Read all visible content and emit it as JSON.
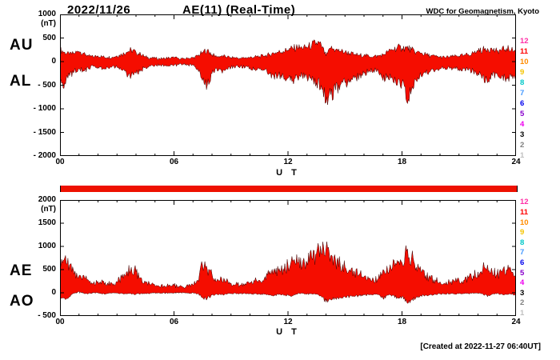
{
  "header": {
    "date": "2022/11/26",
    "title": "AE(11) (Real-Time)",
    "source": "WDC for Geomagnetism, Kyoto"
  },
  "footer": {
    "created_note": "[Created at 2022-11-27 06:40UT]"
  },
  "station_scale": {
    "labels": [
      "12",
      "11",
      "10",
      "9",
      "8",
      "7",
      "6",
      "5",
      "4",
      "3",
      "2",
      "1"
    ],
    "colors": [
      "#ff2ea6",
      "#ff0000",
      "#ff8c00",
      "#f5c400",
      "#00c8c8",
      "#4499ff",
      "#0000ee",
      "#8800cc",
      "#ee00ee",
      "#000000",
      "#808080",
      "#c0c0c0"
    ]
  },
  "station_bar": {
    "color": "#ee1100"
  },
  "chart_data": [
    {
      "type": "area",
      "unit": "(nT)",
      "xlabel": "U T",
      "x_start_hour": 0,
      "x_step_hours": 0.25,
      "x_end_hour": 24,
      "ylim": [
        -2000,
        1000
      ],
      "yticks": [
        1000,
        500,
        0,
        -500,
        -1000,
        -1500,
        -2000
      ],
      "ytick_labels": [
        "1000",
        "500",
        "0",
        "- 500",
        "- 1000",
        "- 1500",
        "- 2000"
      ],
      "xticks": [
        0,
        6,
        12,
        18,
        24
      ],
      "xtick_labels": [
        "00",
        "06",
        "12",
        "18",
        "24"
      ],
      "fill_color": "#f50d00",
      "line_color": "#400000",
      "series": [
        {
          "name": "AU",
          "values": [
            250,
            200,
            150,
            180,
            220,
            180,
            120,
            100,
            120,
            100,
            90,
            100,
            120,
            150,
            200,
            250,
            200,
            150,
            100,
            80,
            70,
            60,
            70,
            80,
            80,
            70,
            60,
            70,
            80,
            120,
            200,
            250,
            150,
            100,
            120,
            100,
            90,
            80,
            70,
            80,
            90,
            100,
            110,
            120,
            150,
            180,
            200,
            220,
            250,
            280,
            300,
            280,
            300,
            350,
            400,
            350,
            120,
            280,
            250,
            220,
            200,
            180,
            150,
            140,
            130,
            120,
            110,
            120,
            150,
            200,
            250,
            300,
            280,
            300,
            250,
            200,
            180,
            150,
            120,
            110,
            100,
            90,
            100,
            110,
            120,
            130,
            150,
            180,
            220,
            250,
            280,
            250,
            220,
            250,
            280,
            250,
            220
          ]
        },
        {
          "name": "AL",
          "values": [
            -500,
            -450,
            -300,
            -200,
            -150,
            -200,
            -150,
            -100,
            -120,
            -150,
            -120,
            -100,
            -120,
            -180,
            -250,
            -300,
            -250,
            -180,
            -120,
            -100,
            -80,
            -70,
            -80,
            -90,
            -80,
            -70,
            -60,
            -70,
            -80,
            -150,
            -400,
            -500,
            -250,
            -150,
            -200,
            -150,
            -120,
            -100,
            -100,
            -120,
            -130,
            -150,
            -160,
            -180,
            -250,
            -300,
            -280,
            -300,
            -350,
            -400,
            -350,
            -300,
            -350,
            -400,
            -450,
            -500,
            -870,
            -700,
            -600,
            -500,
            -450,
            -400,
            -350,
            -300,
            -250,
            -200,
            -180,
            -200,
            -400,
            -300,
            -350,
            -500,
            -450,
            -850,
            -600,
            -400,
            -300,
            -250,
            -200,
            -180,
            -150,
            -130,
            -140,
            -150,
            -160,
            -150,
            -180,
            -200,
            -250,
            -300,
            -450,
            -300,
            -250,
            -300,
            -350,
            -320,
            -300
          ]
        }
      ]
    },
    {
      "type": "area",
      "unit": "(nT)",
      "xlabel": "U T",
      "x_start_hour": 0,
      "x_step_hours": 0.25,
      "x_end_hour": 24,
      "ylim": [
        -500,
        2000
      ],
      "yticks": [
        2000,
        1500,
        1000,
        500,
        0,
        -500
      ],
      "ytick_labels": [
        "2000",
        "1500",
        "1000",
        "500",
        "0",
        "- 500"
      ],
      "xticks": [
        0,
        6,
        12,
        18,
        24
      ],
      "xtick_labels": [
        "00",
        "06",
        "12",
        "18",
        "24"
      ],
      "fill_color": "#f50d00",
      "line_color": "#400000",
      "series": [
        {
          "name": "AE",
          "values": [
            500,
            750,
            600,
            400,
            370,
            380,
            270,
            200,
            240,
            250,
            210,
            200,
            240,
            330,
            450,
            550,
            450,
            330,
            220,
            180,
            150,
            130,
            150,
            170,
            160,
            140,
            120,
            140,
            160,
            270,
            600,
            500,
            400,
            250,
            320,
            250,
            210,
            180,
            170,
            200,
            220,
            250,
            270,
            300,
            400,
            480,
            480,
            520,
            600,
            680,
            650,
            580,
            650,
            750,
            850,
            850,
            950,
            800,
            700,
            600,
            550,
            500,
            450,
            400,
            350,
            300,
            280,
            300,
            500,
            450,
            550,
            700,
            650,
            900,
            750,
            550,
            450,
            380,
            300,
            280,
            240,
            210,
            230,
            250,
            270,
            270,
            320,
            370,
            450,
            500,
            600,
            450,
            400,
            450,
            500,
            450,
            400
          ]
        },
        {
          "name": "AO",
          "values": [
            -120,
            -120,
            -80,
            -10,
            30,
            -10,
            -15,
            0,
            0,
            -20,
            -15,
            0,
            0,
            -15,
            -25,
            -25,
            -25,
            -15,
            -10,
            -10,
            -5,
            -5,
            -5,
            -5,
            0,
            0,
            0,
            0,
            0,
            -15,
            -100,
            -120,
            -50,
            -25,
            -40,
            -25,
            -15,
            -10,
            -15,
            -20,
            -20,
            -25,
            -25,
            -30,
            -50,
            -60,
            -40,
            -40,
            -50,
            -60,
            -25,
            -10,
            -25,
            -25,
            -25,
            -75,
            -200,
            -150,
            -120,
            -100,
            -90,
            -80,
            -75,
            -60,
            -50,
            -40,
            -35,
            -40,
            -120,
            -50,
            -50,
            -100,
            -85,
            -200,
            -150,
            -100,
            -60,
            -50,
            -40,
            -35,
            -25,
            -20,
            -20,
            -20,
            -20,
            -10,
            -15,
            -10,
            -15,
            -25,
            -85,
            -25,
            -15,
            -25,
            -35,
            -35,
            -40
          ]
        }
      ]
    }
  ]
}
